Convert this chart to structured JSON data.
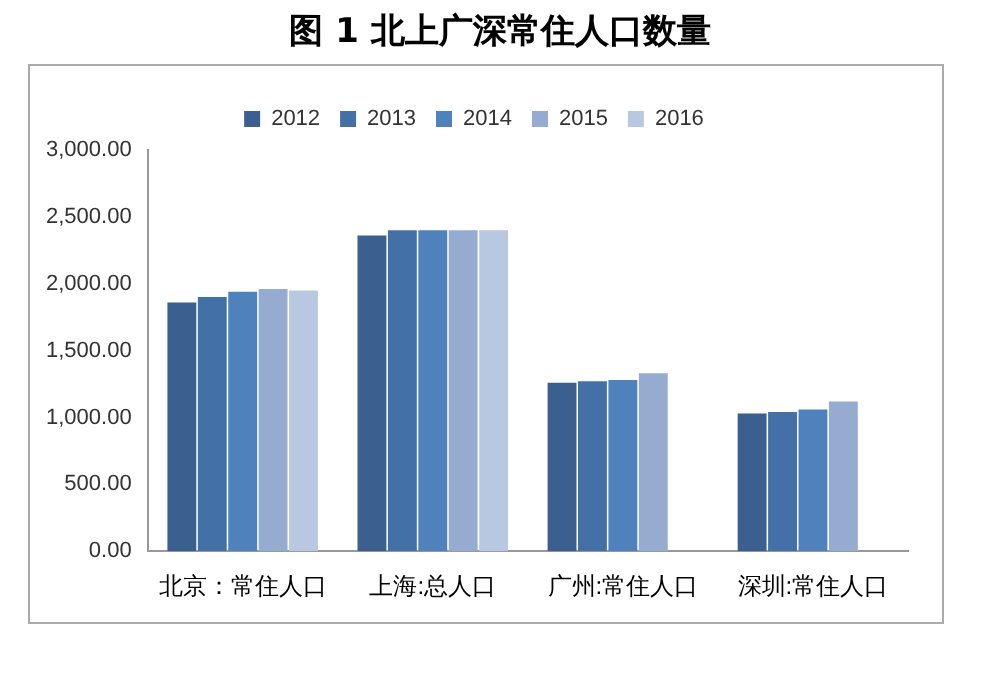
{
  "chart_data": {
    "type": "bar",
    "title": "图 1  北上广深常住人口数量",
    "categories": [
      "北京：常住人口",
      "上海:总人口",
      "广州:常住人口",
      "深圳:常住人口"
    ],
    "series": [
      {
        "name": "2012",
        "color": "#3b5f8f",
        "values": [
          1860,
          2360,
          1260,
          1030
        ]
      },
      {
        "name": "2013",
        "color": "#4470a8",
        "values": [
          1900,
          2400,
          1270,
          1040
        ]
      },
      {
        "name": "2014",
        "color": "#4f81bd",
        "values": [
          1940,
          2400,
          1280,
          1060
        ]
      },
      {
        "name": "2015",
        "color": "#95abd0",
        "values": [
          1960,
          2400,
          1330,
          1120
        ]
      },
      {
        "name": "2016",
        "color": "#b9c8e1",
        "values": [
          1950,
          2400,
          null,
          null
        ]
      }
    ],
    "ylim": [
      0,
      3000
    ],
    "yticks": [
      {
        "value": 0,
        "label": "0.00"
      },
      {
        "value": 500,
        "label": "500.00"
      },
      {
        "value": 1000,
        "label": "1,000.00"
      },
      {
        "value": 1500,
        "label": "1,500.00"
      },
      {
        "value": 2000,
        "label": "2,000.00"
      },
      {
        "value": 2500,
        "label": "2,500.00"
      },
      {
        "value": 3000,
        "label": "3,000.00"
      }
    ],
    "grid": false,
    "legend": "top"
  }
}
